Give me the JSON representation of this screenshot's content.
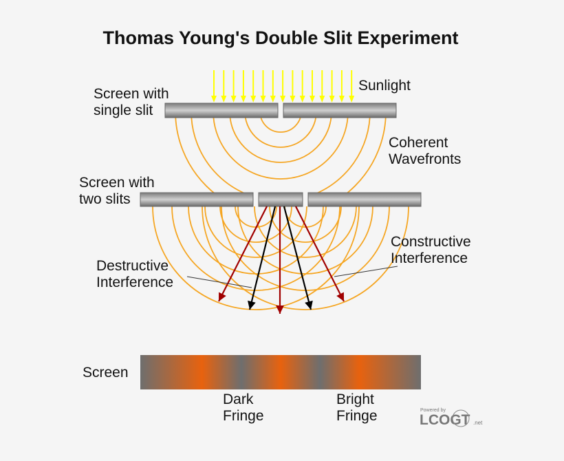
{
  "title": "Thomas Young's Double Slit Experiment",
  "labels": {
    "sunlight": "Sunlight",
    "single_slit": [
      "Screen with",
      "single slit"
    ],
    "coherent": [
      "Coherent",
      "Wavefronts"
    ],
    "two_slits": [
      "Screen with",
      "two slits"
    ],
    "constructive": [
      "Constructive",
      "Interference"
    ],
    "destructive": [
      "Destructive",
      "Interference"
    ],
    "screen": "Screen",
    "dark_fringe": [
      "Dark",
      "Fringe"
    ],
    "bright_fringe": [
      "Bright",
      "Fringe"
    ]
  },
  "logo": {
    "powered": "Powered by",
    "name": "LCOGT",
    "suffix": ".net"
  },
  "colors": {
    "sunlight": "#ffff00",
    "wavefront": "#f5a623",
    "constructive_ray": "#a00000",
    "destructive_ray": "#000000",
    "bright": "#e8620e",
    "screen": "#6e6e6e"
  }
}
